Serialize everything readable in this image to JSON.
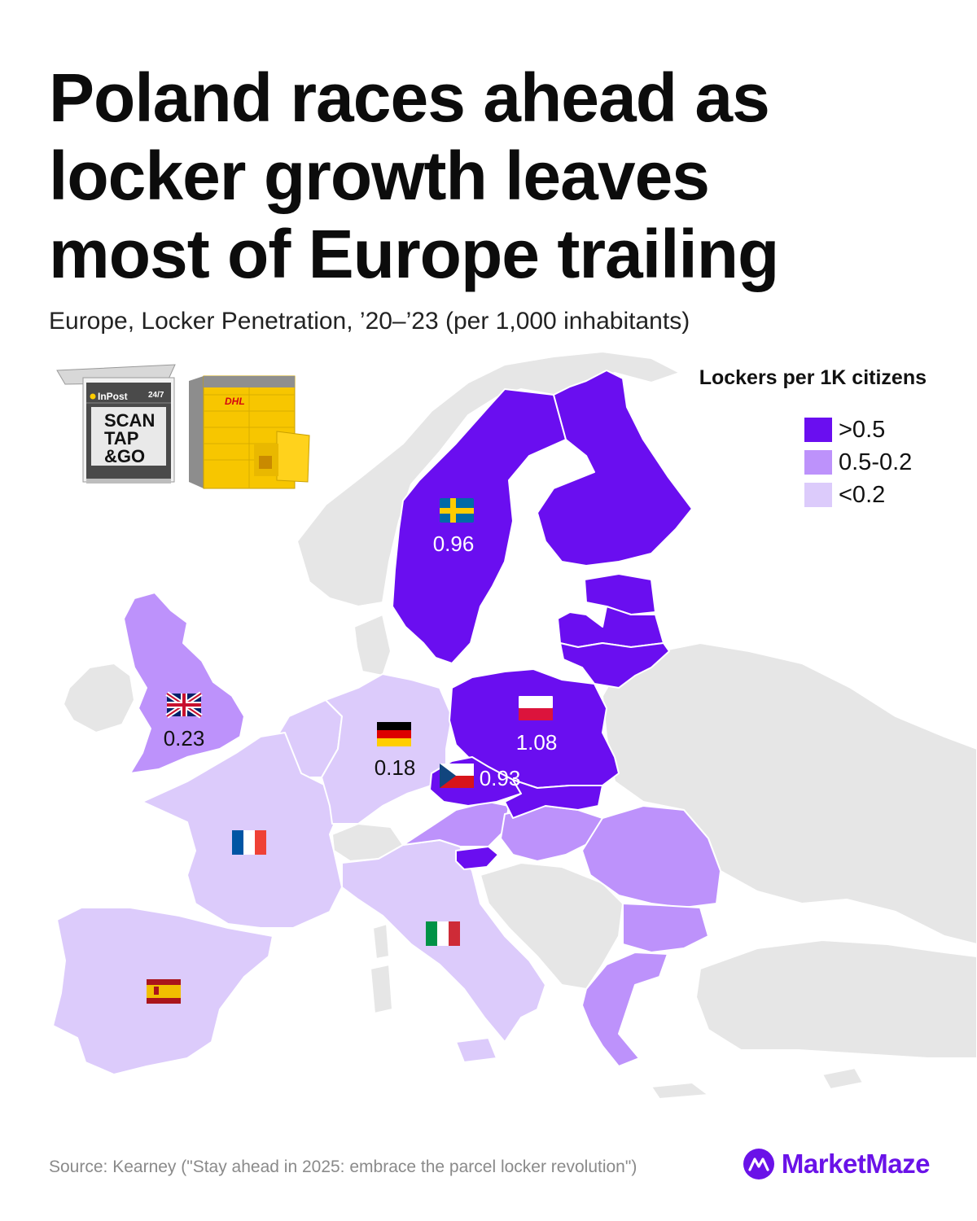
{
  "title_lines": [
    "Poland races ahead as",
    "locker growth leaves",
    "most of Europe trailing"
  ],
  "subtitle": "Europe, Locker Penetration, ’20–’23 (per 1,000 inhabitants)",
  "legend": {
    "title": "Lockers per 1K citizens",
    "items": [
      {
        "label": ">0.5",
        "color": "#6a0ef0"
      },
      {
        "label": "0.5-0.2",
        "color": "#bd92fb"
      },
      {
        "label": "<0.2",
        "color": "#dccbfb"
      }
    ]
  },
  "colors": {
    "no_data": "#e6e6e6",
    "high": "#6a0ef0",
    "mid": "#bd92fb",
    "low": "#dccbfb"
  },
  "countries": {
    "sweden": {
      "value": "0.96",
      "category": ">0.5",
      "flag": "sweden-flag"
    },
    "poland": {
      "value": "1.08",
      "category": ">0.5",
      "flag": "poland-flag"
    },
    "czechia": {
      "value": "0.93",
      "category": ">0.5",
      "flag": "czechia-flag"
    },
    "uk": {
      "value": "0.23",
      "category": "0.5-0.2",
      "flag": "uk-flag"
    },
    "germany": {
      "value": "0.18",
      "category": "<0.2",
      "flag": "germany-flag"
    },
    "france": {
      "category": "<0.2",
      "flag": "france-flag"
    },
    "italy": {
      "category": "<0.2",
      "flag": "italy-flag"
    },
    "spain": {
      "category": "<0.2",
      "flag": "spain-flag"
    }
  },
  "inpost_locker": {
    "brand": "InPost",
    "tag": "24/7",
    "lines": [
      "SCAN",
      "TAP",
      "&GO"
    ]
  },
  "dhl_locker": {
    "brand": "DHL"
  },
  "source": "Source: Kearney (\"Stay ahead in 2025: embrace the parcel locker revolution\")",
  "brand": "MarketMaze"
}
